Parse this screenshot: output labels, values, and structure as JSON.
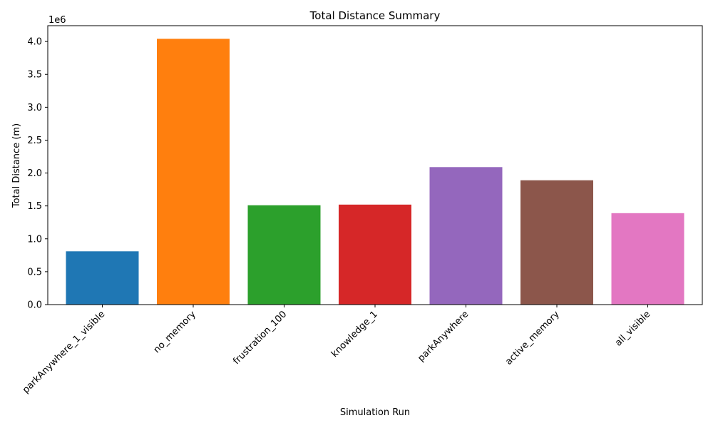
{
  "chart_data": {
    "type": "bar",
    "title": "Total Distance Summary",
    "xlabel": "Simulation Run",
    "ylabel": "Total Distance (m)",
    "offset_label": "1e6",
    "categories": [
      "parkAnywhere_1_visible",
      "no_memory",
      "frustration_100",
      "knowledge_1",
      "parkAnywhere",
      "active_memory",
      "all_visible"
    ],
    "values": [
      810000,
      4040000,
      1510000,
      1520000,
      2090000,
      1890000,
      1390000
    ],
    "colors": [
      "#1f77b4",
      "#ff7f0e",
      "#2ca02c",
      "#d62728",
      "#9467bd",
      "#8c564b",
      "#e377c2"
    ],
    "ylim": [
      0,
      4240000
    ],
    "yticks": [
      0,
      500000,
      1000000,
      1500000,
      2000000,
      2500000,
      3000000,
      3500000,
      4000000
    ],
    "ytick_labels": [
      "0.0",
      "0.5",
      "1.0",
      "1.5",
      "2.0",
      "2.5",
      "3.0",
      "3.5",
      "4.0"
    ],
    "grid": false,
    "legend": "none"
  }
}
